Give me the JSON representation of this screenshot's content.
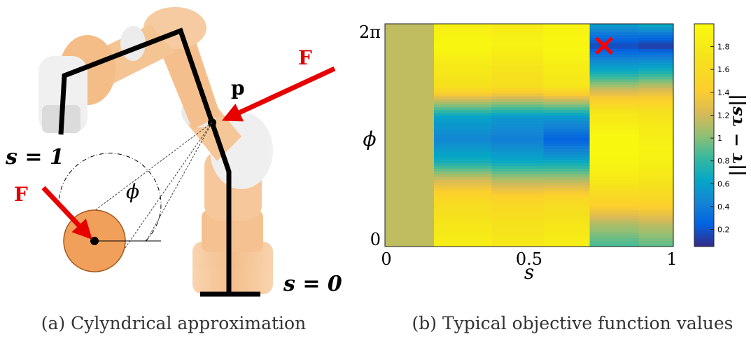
{
  "left_panel": {
    "caption": "(a) Cylyndrical approximation",
    "label_s1": "s = 1",
    "label_s0": "s = 0",
    "label_F_top": "F",
    "label_F_left": "F",
    "label_p": "p",
    "label_phi": "ϕ",
    "colors": {
      "robot": "#f5bd8a",
      "link": "#000000",
      "force": "#e60000",
      "cylinder": "#f0a05a"
    }
  },
  "right_panel": {
    "caption": "(b) Typical objective function values",
    "chart_data": {
      "type": "heatmap",
      "xlabel": "s",
      "ylabel": "ϕ",
      "xlim": [
        0,
        1
      ],
      "ylim": [
        0,
        6.283
      ],
      "x_tick_labels": [
        "0",
        "0.5",
        "1"
      ],
      "y_tick_labels": [
        "0",
        "2π"
      ],
      "colorbar": {
        "label": "||τ − τs||",
        "range": [
          0.05,
          2.0
        ],
        "tick_labels": [
          "0.2",
          "0.4",
          "0.6",
          "0.8",
          "1",
          "1.2",
          "1.4",
          "1.6",
          "1.8"
        ]
      },
      "columns": [
        {
          "s_range": [
            0,
            0.17
          ],
          "profile": [
            [
              0,
              1.15
            ],
            [
              1,
              1.15
            ]
          ]
        },
        {
          "s_range": [
            0.17,
            0.37
          ],
          "profile": [
            [
              0,
              1.85
            ],
            [
              0.1,
              1.75
            ],
            [
              0.2,
              1.6
            ],
            [
              0.3,
              1.2
            ],
            [
              0.38,
              0.7
            ],
            [
              0.48,
              0.45
            ],
            [
              0.58,
              0.6
            ],
            [
              0.66,
              1.2
            ],
            [
              0.72,
              1.7
            ],
            [
              0.82,
              1.8
            ],
            [
              0.9,
              1.95
            ],
            [
              1,
              1.85
            ]
          ]
        },
        {
          "s_range": [
            0.37,
            0.55
          ],
          "profile": [
            [
              0,
              1.8
            ],
            [
              0.1,
              1.7
            ],
            [
              0.2,
              1.55
            ],
            [
              0.3,
              1.1
            ],
            [
              0.38,
              0.65
            ],
            [
              0.48,
              0.4
            ],
            [
              0.58,
              0.55
            ],
            [
              0.66,
              1.15
            ],
            [
              0.72,
              1.65
            ],
            [
              0.82,
              1.75
            ],
            [
              0.9,
              1.9
            ],
            [
              1,
              1.8
            ]
          ]
        },
        {
          "s_range": [
            0.55,
            0.71
          ],
          "profile": [
            [
              0,
              1.85
            ],
            [
              0.1,
              1.75
            ],
            [
              0.2,
              1.6
            ],
            [
              0.3,
              1.1
            ],
            [
              0.4,
              0.55
            ],
            [
              0.48,
              0.25
            ],
            [
              0.58,
              0.55
            ],
            [
              0.66,
              1.2
            ],
            [
              0.72,
              1.75
            ],
            [
              0.82,
              1.85
            ],
            [
              0.9,
              1.95
            ],
            [
              1,
              1.9
            ]
          ]
        },
        {
          "s_range": [
            0.71,
            0.88
          ],
          "profile": [
            [
              0,
              0.85
            ],
            [
              0.1,
              1.1
            ],
            [
              0.2,
              1.5
            ],
            [
              0.3,
              1.8
            ],
            [
              0.4,
              1.95
            ],
            [
              0.5,
              1.95
            ],
            [
              0.6,
              1.75
            ],
            [
              0.7,
              1.2
            ],
            [
              0.78,
              0.7
            ],
            [
              0.86,
              0.35
            ],
            [
              0.9,
              0.15
            ],
            [
              0.95,
              0.35
            ],
            [
              1,
              0.6
            ]
          ]
        },
        {
          "s_range": [
            0.88,
            1.0
          ],
          "profile": [
            [
              0,
              0.9
            ],
            [
              0.1,
              1.15
            ],
            [
              0.2,
              1.5
            ],
            [
              0.3,
              1.75
            ],
            [
              0.4,
              1.9
            ],
            [
              0.5,
              1.85
            ],
            [
              0.6,
              1.7
            ],
            [
              0.7,
              1.25
            ],
            [
              0.78,
              0.75
            ],
            [
              0.86,
              0.35
            ],
            [
              0.9,
              0.1
            ],
            [
              0.95,
              0.35
            ],
            [
              1,
              0.7
            ]
          ]
        }
      ],
      "marker": {
        "symbol": "×",
        "color": "#ff0000",
        "s": 0.76,
        "phi": 5.67
      }
    }
  }
}
